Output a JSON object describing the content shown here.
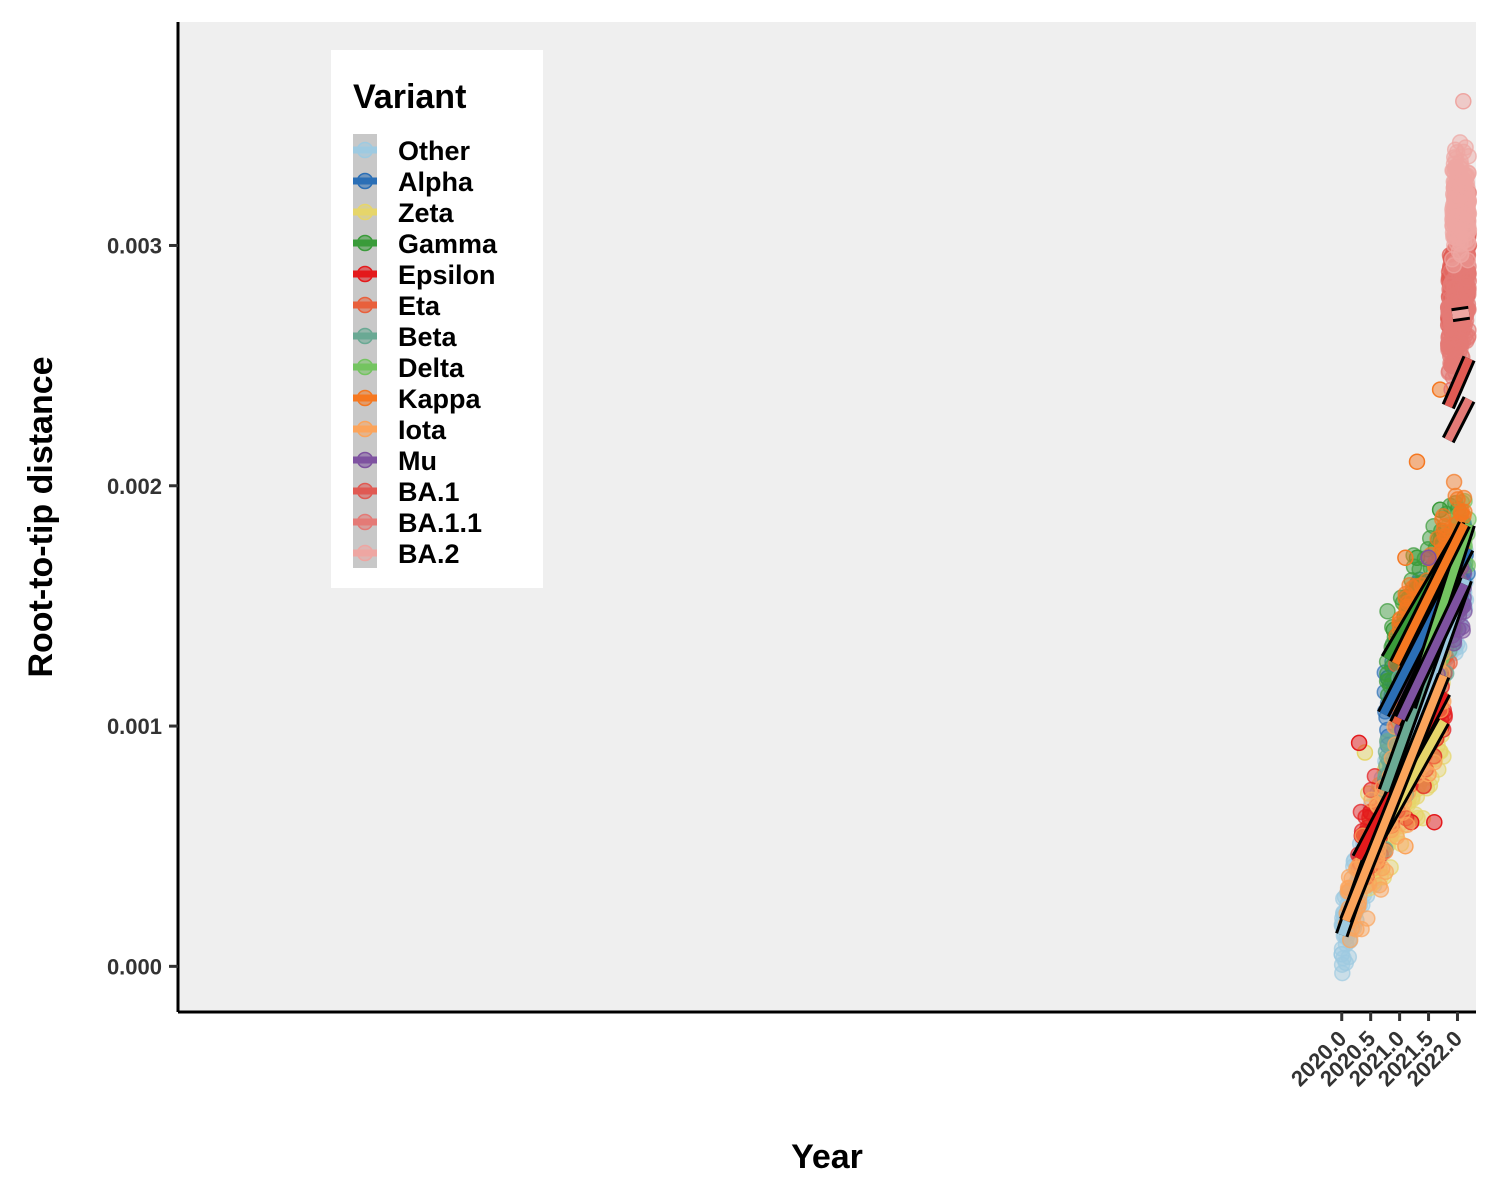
{
  "chart_data": {
    "type": "scatter",
    "title": "",
    "xlabel": "Year",
    "ylabel": "Root-to-tip distance",
    "xlim": [
      1999.89,
      2022.32
    ],
    "ylim": [
      -0.00019,
      0.00393
    ],
    "xticks": [
      2020.0,
      2020.5,
      2021.0,
      2021.5,
      2022.0
    ],
    "xtick_labels": [
      "2020.0",
      "2020.5",
      "2021.0",
      "2021.5",
      "2022.0"
    ],
    "yticks": [
      0.0,
      0.001,
      0.002,
      0.003
    ],
    "ytick_labels": [
      "0.000",
      "0.001",
      "0.002",
      "0.003"
    ],
    "grid": false,
    "legend": {
      "title": "Variant",
      "placement": "top-left",
      "entries": [
        "Other",
        "Alpha",
        "Zeta",
        "Gamma",
        "Epsilon",
        "Eta",
        "Beta",
        "Delta",
        "Kappa",
        "Iota",
        "Mu",
        "BA.1",
        "BA.1.1",
        "BA.2"
      ]
    },
    "series": [
      {
        "name": "Other",
        "color": "#9ecae1",
        "x_range": [
          2020.0,
          2022.15
        ],
        "trend": [
          [
            2020.0,
            0.00013
          ],
          [
            2022.15,
            0.00161
          ]
        ],
        "cloud": [
          [
            2020.0,
            5e-05
          ],
          [
            2020.5,
            0.00045
          ],
          [
            2021.0,
            0.0008
          ],
          [
            2021.5,
            0.0012
          ],
          [
            2022.0,
            0.0014
          ]
        ]
      },
      {
        "name": "Alpha",
        "color": "#2b6fb6",
        "x_range": [
          2020.72,
          2022.18
        ],
        "trend": [
          [
            2020.72,
            0.00105
          ],
          [
            2022.18,
            0.00174
          ]
        ],
        "cloud": [
          [
            2020.8,
            0.0012
          ],
          [
            2021.2,
            0.0014
          ],
          [
            2021.5,
            0.0016
          ]
        ]
      },
      {
        "name": "Zeta",
        "color": "#e6d56a",
        "x_range": [
          2020.42,
          2021.76
        ],
        "trend": [
          [
            2020.42,
            0.00044
          ],
          [
            2021.76,
            0.00102
          ]
        ],
        "cloud": [
          [
            2020.4,
            0.00089
          ],
          [
            2021.1,
            0.0015
          ]
        ]
      },
      {
        "name": "Gamma",
        "color": "#3a9b3a",
        "x_range": [
          2020.78,
          2022.12
        ],
        "trend": [
          [
            2020.78,
            0.00128
          ],
          [
            2022.12,
            0.00183
          ]
        ],
        "cloud": [
          [
            2020.9,
            0.0014
          ],
          [
            2021.3,
            0.0017
          ],
          [
            2021.7,
            0.0019
          ]
        ]
      },
      {
        "name": "Epsilon",
        "color": "#e41a1c",
        "x_range": [
          2020.28,
          2021.78
        ],
        "trend": [
          [
            2020.28,
            0.00045
          ],
          [
            2021.78,
            0.00114
          ]
        ],
        "cloud": [
          [
            2020.3,
            0.00093
          ],
          [
            2021.2,
            0.0006
          ],
          [
            2021.6,
            0.0006
          ]
        ]
      },
      {
        "name": "Eta",
        "color": "#e8603c",
        "x_range": [
          2020.93,
          2021.95
        ],
        "trend": [
          [
            2020.93,
            0.00101
          ],
          [
            2021.95,
            0.00152
          ]
        ],
        "cloud": [
          [
            2021.2,
            0.0011
          ],
          [
            2021.5,
            0.0013
          ]
        ]
      },
      {
        "name": "Beta",
        "color": "#6aa994",
        "x_range": [
          2020.74,
          2022.0
        ],
        "trend": [
          [
            2020.74,
            0.00073
          ],
          [
            2022.0,
            0.00158
          ]
        ],
        "cloud": [
          [
            2021.0,
            0.0012
          ],
          [
            2021.7,
            0.0014
          ]
        ]
      },
      {
        "name": "Delta",
        "color": "#74c461",
        "x_range": [
          2021.18,
          2022.2
        ],
        "trend": [
          [
            2021.18,
            0.00108
          ],
          [
            2022.2,
            0.00184
          ]
        ],
        "cloud": [
          [
            2021.4,
            0.0015
          ],
          [
            2021.8,
            0.0017
          ],
          [
            2022.1,
            0.0018
          ]
        ]
      },
      {
        "name": "Kappa",
        "color": "#f57821",
        "x_range": [
          2020.93,
          2022.12
        ],
        "trend": [
          [
            2020.93,
            0.00126
          ],
          [
            2022.12,
            0.00184
          ]
        ],
        "cloud": [
          [
            2021.1,
            0.0017
          ],
          [
            2021.3,
            0.0021
          ],
          [
            2021.7,
            0.0024
          ]
        ]
      },
      {
        "name": "Iota",
        "color": "#fba45b",
        "x_range": [
          2020.07,
          2021.76
        ],
        "trend": [
          [
            2020.07,
            0.00019
          ],
          [
            2021.76,
            0.00121
          ]
        ],
        "cloud": [
          [
            2021.1,
            0.0005
          ],
          [
            2021.5,
            0.0008
          ]
        ]
      },
      {
        "name": "Mu",
        "color": "#7e52a0",
        "x_range": [
          2021.02,
          2022.12
        ],
        "trend": [
          [
            2021.02,
            0.00103
          ],
          [
            2022.12,
            0.00159
          ]
        ],
        "cloud": [
          [
            2021.5,
            0.0017
          ],
          [
            2021.8,
            0.0014
          ]
        ]
      },
      {
        "name": "BA.1",
        "color": "#e05a53",
        "x_range": [
          2021.84,
          2022.2
        ],
        "trend": [
          [
            2021.84,
            0.00233
          ],
          [
            2022.2,
            0.00253
          ]
        ],
        "cloud": [
          [
            2021.9,
            0.0025
          ],
          [
            2022.05,
            0.0029
          ],
          [
            2022.15,
            0.0031
          ]
        ]
      },
      {
        "name": "BA.1.1",
        "color": "#e47a76",
        "x_range": [
          2021.84,
          2022.2
        ],
        "trend": [
          [
            2021.84,
            0.00219
          ],
          [
            2022.2,
            0.00236
          ]
        ],
        "cloud": [
          [
            2021.9,
            0.0024
          ],
          [
            2022.05,
            0.003
          ]
        ]
      },
      {
        "name": "BA.2",
        "color": "#eea6a2",
        "x_range": [
          2021.91,
          2022.2
        ],
        "trend": [
          [
            2021.91,
            0.00271
          ],
          [
            2022.2,
            0.00272
          ]
        ],
        "cloud": [
          [
            2022.0,
            0.0033
          ],
          [
            2022.1,
            0.0036
          ]
        ]
      }
    ]
  }
}
